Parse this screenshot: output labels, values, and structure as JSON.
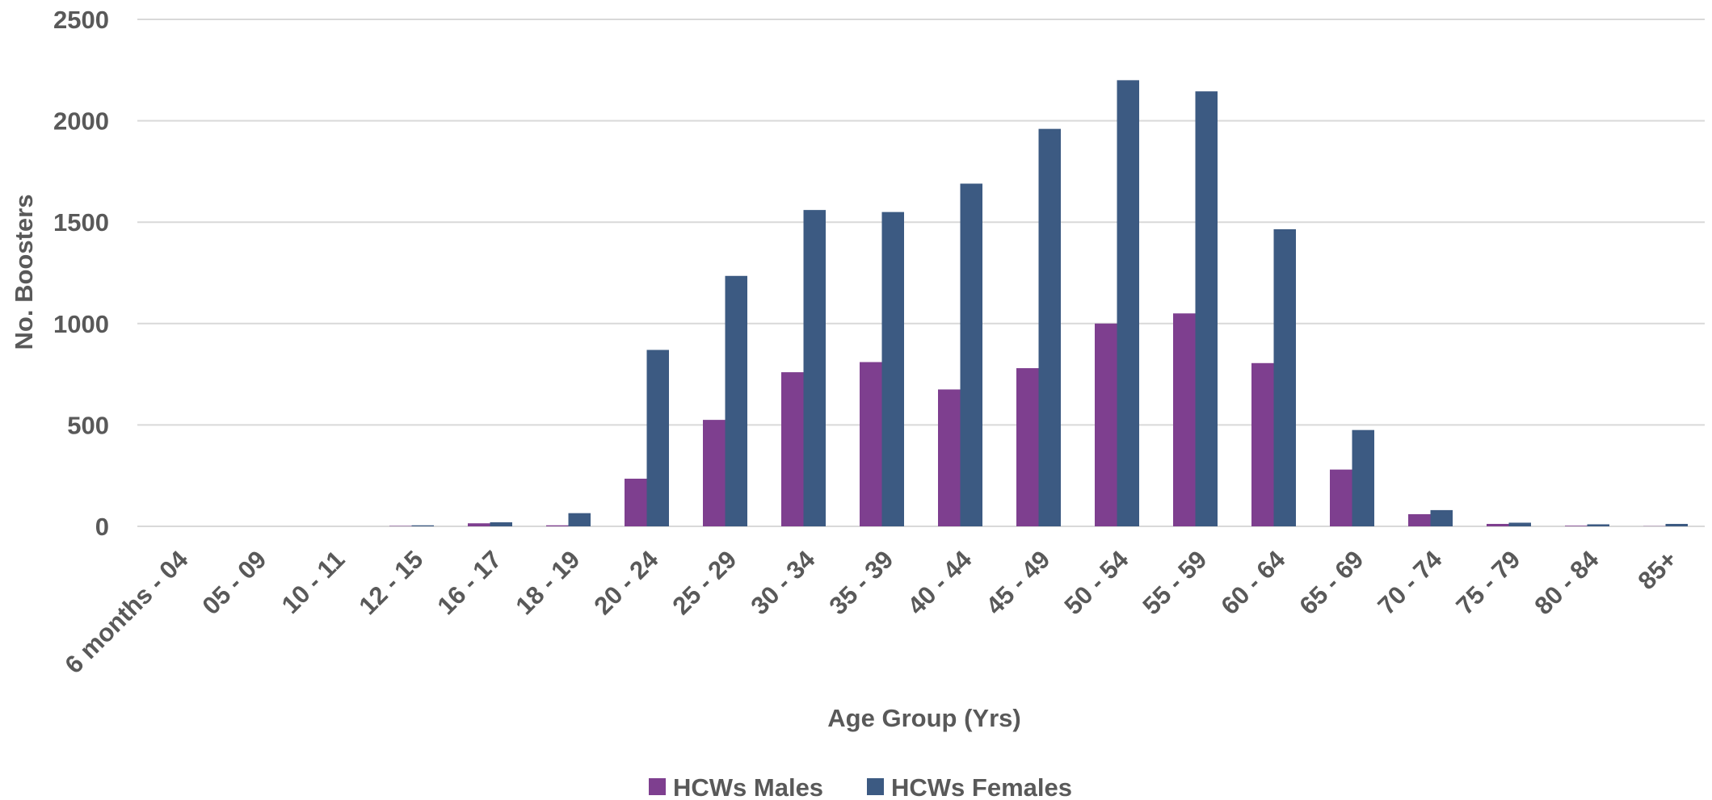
{
  "chart_data": {
    "type": "bar",
    "title": "",
    "xlabel": "Age Group (Yrs)",
    "ylabel": "No. Boosters",
    "ylim": [
      0,
      2500
    ],
    "yticks": [
      0,
      500,
      1000,
      1500,
      2000,
      2500
    ],
    "grid": true,
    "legend_position": "bottom",
    "categories": [
      "6 months - 04",
      "05 - 09",
      "10 - 11",
      "12 - 15",
      "16 - 17",
      "18 - 19",
      "20 - 24",
      "25 - 29",
      "30 - 34",
      "35 - 39",
      "40 - 44",
      "45 - 49",
      "50 - 54",
      "55 - 59",
      "60 - 64",
      "65 - 69",
      "70 - 74",
      "75 - 79",
      "80 - 84",
      "85+"
    ],
    "series": [
      {
        "name": "HCWs Males",
        "color": "#7E3F8F",
        "values": [
          0,
          0,
          0,
          2,
          15,
          5,
          235,
          525,
          760,
          810,
          675,
          780,
          1000,
          1050,
          805,
          280,
          60,
          12,
          3,
          1
        ]
      },
      {
        "name": "HCWs Females",
        "color": "#3C5A82",
        "values": [
          0,
          0,
          0,
          5,
          20,
          65,
          870,
          1235,
          1560,
          1550,
          1690,
          1960,
          2200,
          2145,
          1465,
          475,
          80,
          18,
          10,
          12
        ]
      }
    ]
  }
}
